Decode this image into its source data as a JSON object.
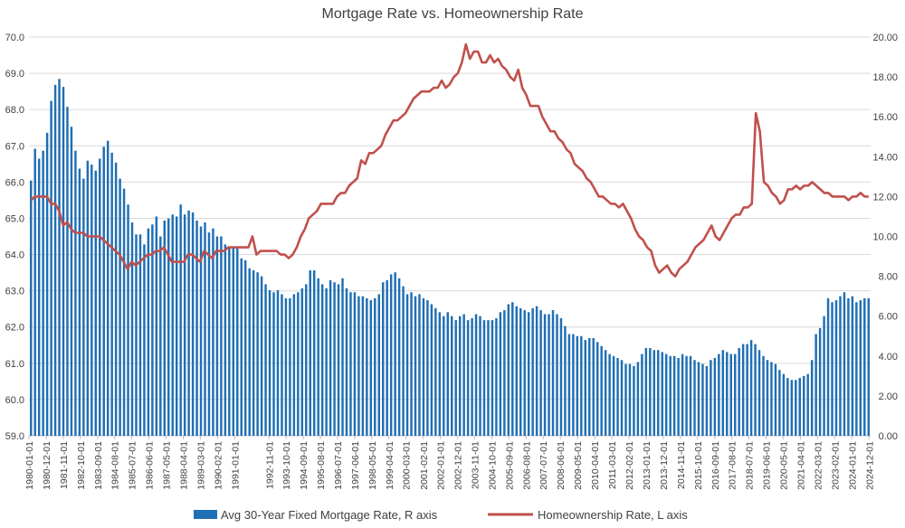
{
  "chart_data": {
    "type": "bar+line",
    "title": "Mortgage Rate vs. Homeownership Rate",
    "left_axis": {
      "min": 59.0,
      "max": 70.0,
      "step": 1.0,
      "ticks": [
        "59.0",
        "60.0",
        "61.0",
        "62.0",
        "63.0",
        "64.0",
        "65.0",
        "66.0",
        "67.0",
        "68.0",
        "69.0",
        "70.0"
      ]
    },
    "right_axis": {
      "min": 0,
      "max": 20,
      "step": 2,
      "ticks": [
        "0.00",
        "2.00",
        "4.00",
        "6.00",
        "8.00",
        "10.00",
        "12.00",
        "14.00",
        "16.00",
        "18.00",
        "20.00"
      ]
    },
    "x_start": "1980-01-01",
    "x_end": "2025-01-01",
    "x_tick_labels": [
      "1980-01-01",
      "1980-12-01",
      "1981-11-01",
      "1982-10-01",
      "1983-09-01",
      "1984-08-01",
      "1985-07-01",
      "1986-06-01",
      "1987-05-01",
      "1988-04-01",
      "1989-03-01",
      "1990-02-01",
      "1991-01-01",
      "1992-11-01",
      "1993-10-01",
      "1994-09-01",
      "1995-08-01",
      "1996-07-01",
      "1997-06-01",
      "1998-05-01",
      "1999-04-01",
      "2000-03-01",
      "2001-02-01",
      "2002-01-01",
      "2002-12-01",
      "2003-11-01",
      "2004-10-01",
      "2005-09-01",
      "2006-08-01",
      "2007-07-01",
      "2008-06-01",
      "2009-05-01",
      "2010-04-01",
      "2011-03-01",
      "2012-02-01",
      "2013-01-01",
      "2013-12-01",
      "2014-11-01",
      "2015-10-01",
      "2016-09-01",
      "2017-08-01",
      "2018-07-01",
      "2019-06-01",
      "2020-05-01",
      "2021-04-01",
      "2022-03-01",
      "2023-02-01",
      "2024-01-01",
      "2024-12-01"
    ],
    "series": [
      {
        "name": "Avg 30-Year Fixed Mortgage Rate, R axis",
        "type": "bar",
        "axis": "right",
        "color": "#1f6fb4",
        "values": [
          12.8,
          14.4,
          13.9,
          14.3,
          15.2,
          16.8,
          17.6,
          17.9,
          17.5,
          16.5,
          15.5,
          14.3,
          13.4,
          12.9,
          13.8,
          13.6,
          13.3,
          13.9,
          14.5,
          14.8,
          14.2,
          13.7,
          12.9,
          12.4,
          11.6,
          10.7,
          10.1,
          10.1,
          9.6,
          10.4,
          10.6,
          11.0,
          10.0,
          10.8,
          10.9,
          11.1,
          11.0,
          11.6,
          11.1,
          11.3,
          11.2,
          10.8,
          10.5,
          10.7,
          10.2,
          10.4,
          10.0,
          10.0,
          9.6,
          9.5,
          9.5,
          9.4,
          8.9,
          8.8,
          8.4,
          8.3,
          8.2,
          8.0,
          7.6,
          7.3,
          7.2,
          7.3,
          7.1,
          6.9,
          6.9,
          7.1,
          7.2,
          7.4,
          7.6,
          8.3,
          8.3,
          7.9,
          7.6,
          7.4,
          7.8,
          7.7,
          7.6,
          7.9,
          7.4,
          7.2,
          7.2,
          7.0,
          7.0,
          6.9,
          6.8,
          6.9,
          7.1,
          7.7,
          7.8,
          8.1,
          8.2,
          7.9,
          7.5,
          7.1,
          7.2,
          7.0,
          7.1,
          6.9,
          6.8,
          6.6,
          6.4,
          6.2,
          6.0,
          6.2,
          6.0,
          5.8,
          6.0,
          6.1,
          5.8,
          5.9,
          6.1,
          6.0,
          5.8,
          5.8,
          5.8,
          5.9,
          6.2,
          6.3,
          6.6,
          6.7,
          6.5,
          6.4,
          6.3,
          6.2,
          6.4,
          6.5,
          6.3,
          6.1,
          6.1,
          6.3,
          6.1,
          5.9,
          5.5,
          5.1,
          5.1,
          5.0,
          5.0,
          4.8,
          4.9,
          4.9,
          4.7,
          4.5,
          4.3,
          4.1,
          4.0,
          3.9,
          3.8,
          3.6,
          3.6,
          3.5,
          3.7,
          4.1,
          4.4,
          4.4,
          4.3,
          4.3,
          4.2,
          4.1,
          4.0,
          4.0,
          3.9,
          4.1,
          4.0,
          4.0,
          3.8,
          3.7,
          3.6,
          3.5,
          3.8,
          3.9,
          4.1,
          4.3,
          4.2,
          4.1,
          4.1,
          4.4,
          4.6,
          4.6,
          4.8,
          4.6,
          4.3,
          4.0,
          3.8,
          3.7,
          3.6,
          3.3,
          3.1,
          2.9,
          2.8,
          2.8,
          2.9,
          3.0,
          3.1,
          3.8,
          5.1,
          5.4,
          6.0,
          6.9,
          6.7,
          6.8,
          7.0,
          7.2,
          6.9,
          7.0,
          6.7,
          6.8,
          6.9,
          6.9
        ]
      },
      {
        "name": "Homeownership Rate, L axis",
        "type": "line",
        "axis": "left",
        "color": "#c0504d",
        "values": [
          65.5,
          65.6,
          65.6,
          65.6,
          65.6,
          65.4,
          65.4,
          65.2,
          64.8,
          64.9,
          64.7,
          64.6,
          64.6,
          64.6,
          64.5,
          64.5,
          64.5,
          64.5,
          64.4,
          64.3,
          64.2,
          64.1,
          64.0,
          63.8,
          63.6,
          63.8,
          63.7,
          63.8,
          63.9,
          64.0,
          64.0,
          64.1,
          64.1,
          64.2,
          64.0,
          63.8,
          63.8,
          63.8,
          63.8,
          64.0,
          64.0,
          63.9,
          63.8,
          64.1,
          64.0,
          63.9,
          64.1,
          64.1,
          64.1,
          64.2,
          64.2,
          64.2,
          64.2,
          64.2,
          64.2,
          64.5,
          64.0,
          64.1,
          64.1,
          64.1,
          64.1,
          64.1,
          64.0,
          64.0,
          63.9,
          64.0,
          64.2,
          64.5,
          64.7,
          65.0,
          65.1,
          65.2,
          65.4,
          65.4,
          65.4,
          65.4,
          65.6,
          65.7,
          65.7,
          65.9,
          66.0,
          66.1,
          66.6,
          66.5,
          66.8,
          66.8,
          66.9,
          67.0,
          67.3,
          67.5,
          67.7,
          67.7,
          67.8,
          67.9,
          68.1,
          68.3,
          68.4,
          68.5,
          68.5,
          68.5,
          68.6,
          68.6,
          68.8,
          68.6,
          68.7,
          68.9,
          69.0,
          69.3,
          69.8,
          69.4,
          69.6,
          69.6,
          69.3,
          69.3,
          69.5,
          69.3,
          69.4,
          69.2,
          69.1,
          68.9,
          68.8,
          69.1,
          68.6,
          68.4,
          68.1,
          68.1,
          68.1,
          67.8,
          67.6,
          67.4,
          67.4,
          67.2,
          67.1,
          66.9,
          66.8,
          66.5,
          66.4,
          66.3,
          66.1,
          66.0,
          65.8,
          65.6,
          65.6,
          65.5,
          65.4,
          65.4,
          65.3,
          65.4,
          65.2,
          65.0,
          64.7,
          64.5,
          64.4,
          64.2,
          64.1,
          63.7,
          63.5,
          63.6,
          63.7,
          63.5,
          63.4,
          63.6,
          63.7,
          63.8,
          64.0,
          64.2,
          64.3,
          64.4,
          64.6,
          64.8,
          64.5,
          64.4,
          64.6,
          64.8,
          65.0,
          65.1,
          65.1,
          65.3,
          65.3,
          65.4,
          67.9,
          67.4,
          66.0,
          65.9,
          65.7,
          65.6,
          65.4,
          65.5,
          65.8,
          65.8,
          65.9,
          65.8,
          65.9,
          65.9,
          66.0,
          65.9,
          65.8,
          65.7,
          65.7,
          65.6,
          65.6,
          65.6,
          65.6,
          65.5,
          65.6,
          65.6,
          65.7,
          65.6,
          65.6
        ]
      }
    ],
    "grid": true,
    "legend_position": "bottom"
  }
}
